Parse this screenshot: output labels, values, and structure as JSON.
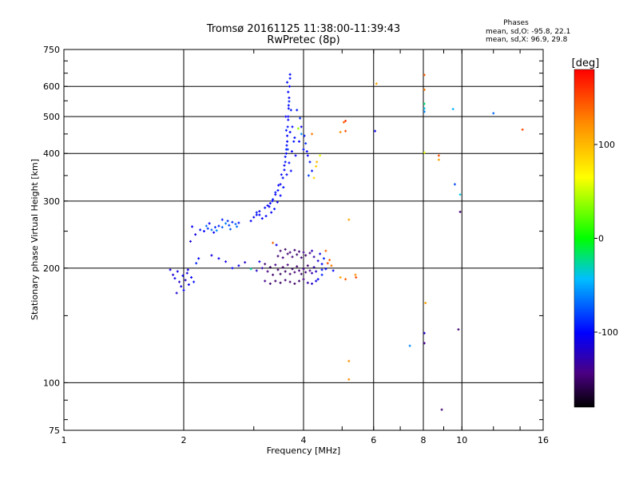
{
  "chart_data": {
    "type": "scatter",
    "title": "Tromsø 20161125 11:38:00-11:39:43",
    "subtitle": "RwPretec (8p)",
    "xlabel": "Frequency [MHz]",
    "ylabel": "Stationary phase Virtual Height [km]",
    "x_scale": "log",
    "y_scale": "log",
    "xlim": [
      1,
      16
    ],
    "ylim": [
      75,
      750
    ],
    "x_ticks": [
      1,
      2,
      4,
      6,
      8,
      10,
      16
    ],
    "x_tick_labels": [
      "1",
      "2",
      "4",
      "6",
      "8",
      "10",
      "16"
    ],
    "y_ticks": [
      75,
      100,
      200,
      300,
      400,
      500,
      600,
      750
    ],
    "y_tick_labels": [
      "75",
      "100",
      "200",
      "300",
      "400",
      "500",
      "600",
      "750"
    ],
    "grid_x": [
      2,
      4,
      6,
      8,
      10
    ],
    "grid_y": [
      100,
      200,
      300,
      400,
      500,
      600
    ],
    "grid": true,
    "legend": {
      "title": "Phases",
      "lines": [
        "mean, sd,O: -95.8, 22.1",
        "mean, sd,X: 96.9, 29.8"
      ]
    },
    "colorbar": {
      "label": "[deg]",
      "min": -180,
      "max": 180,
      "ticks": [
        100,
        0,
        -100
      ],
      "tick_labels": [
        "100",
        "0",
        "-100"
      ]
    },
    "series": [
      {
        "points": [
          [
            1.88,
            192,
            -115
          ],
          [
            1.9,
            188,
            -105
          ],
          [
            1.93,
            196,
            -110
          ],
          [
            1.95,
            184,
            -120
          ],
          [
            1.97,
            179,
            -108
          ],
          [
            1.99,
            191,
            -102
          ],
          [
            2.02,
            186,
            -118
          ],
          [
            2.04,
            194,
            -112
          ],
          [
            2.06,
            181,
            -106
          ],
          [
            2.09,
            189,
            -100
          ],
          [
            1.92,
            172,
            -115
          ],
          [
            2.0,
            175,
            -104
          ],
          [
            2.05,
            198,
            -110
          ],
          [
            2.12,
            184,
            -96
          ],
          [
            2.15,
            206,
            -90
          ],
          [
            1.85,
            198,
            -112
          ],
          [
            2.18,
            212,
            -100
          ],
          [
            2.08,
            235,
            -115
          ],
          [
            2.1,
            257,
            -104
          ],
          [
            2.14,
            245,
            -110
          ],
          [
            2.2,
            252,
            -95
          ],
          [
            2.25,
            250,
            -100
          ],
          [
            2.3,
            254,
            -85
          ],
          [
            2.35,
            252,
            -70
          ],
          [
            2.4,
            256,
            -88
          ],
          [
            2.45,
            258,
            -92
          ],
          [
            2.5,
            256,
            -75
          ],
          [
            2.55,
            262,
            -65
          ],
          [
            2.6,
            259,
            -80
          ],
          [
            2.65,
            264,
            -90
          ],
          [
            2.7,
            261,
            -70
          ],
          [
            2.75,
            263,
            -95
          ],
          [
            2.28,
            258,
            -70
          ],
          [
            2.42,
            251,
            -60
          ],
          [
            2.58,
            266,
            -86
          ],
          [
            2.72,
            257,
            -68
          ],
          [
            2.32,
            262,
            -100
          ],
          [
            2.5,
            268,
            -92
          ],
          [
            2.38,
            248,
            -105
          ],
          [
            2.62,
            253,
            -75
          ],
          [
            2.95,
            266,
            -100
          ],
          [
            3.0,
            272,
            -105
          ],
          [
            3.05,
            276,
            -98
          ],
          [
            3.1,
            282,
            -110
          ],
          [
            3.15,
            270,
            -102
          ],
          [
            3.2,
            288,
            -96
          ],
          [
            3.25,
            292,
            -108
          ],
          [
            3.3,
            296,
            -100
          ],
          [
            3.35,
            303,
            -94
          ],
          [
            3.4,
            312,
            -105
          ],
          [
            3.45,
            320,
            -98
          ],
          [
            3.5,
            332,
            -102
          ],
          [
            3.55,
            345,
            -96
          ],
          [
            3.58,
            362,
            -100
          ],
          [
            3.6,
            380,
            -94
          ],
          [
            3.62,
            400,
            -102
          ],
          [
            3.63,
            420,
            -96
          ],
          [
            3.64,
            445,
            -100
          ],
          [
            3.65,
            470,
            -94
          ],
          [
            3.66,
            500,
            -102
          ],
          [
            3.67,
            525,
            -98
          ],
          [
            3.68,
            560,
            -104
          ],
          [
            3.69,
            600,
            -100
          ],
          [
            3.7,
            630,
            -96
          ],
          [
            3.7,
            645,
            -100
          ],
          [
            3.68,
            548,
            -92
          ],
          [
            3.66,
            490,
            -98
          ],
          [
            3.64,
            430,
            -100
          ],
          [
            3.62,
            410,
            -90
          ],
          [
            3.58,
            372,
            -104
          ],
          [
            3.52,
            352,
            -96
          ],
          [
            3.46,
            330,
            -102
          ],
          [
            3.4,
            316,
            -94
          ],
          [
            3.34,
            300,
            -100
          ],
          [
            3.28,
            290,
            -104
          ],
          [
            3.1,
            276,
            -98
          ],
          [
            3.05,
            280,
            -92
          ],
          [
            3.65,
            410,
            -88
          ],
          [
            3.7,
            455,
            -100
          ],
          [
            3.6,
            392,
            -96
          ],
          [
            3.72,
            520,
            -94
          ],
          [
            3.75,
            470,
            -98
          ],
          [
            3.68,
            378,
            -100
          ],
          [
            3.63,
            352,
            -102
          ],
          [
            3.56,
            326,
            -96
          ],
          [
            3.5,
            310,
            -100
          ],
          [
            3.44,
            298,
            -104
          ],
          [
            3.38,
            286,
            -96
          ],
          [
            3.32,
            280,
            -102
          ],
          [
            3.22,
            274,
            -98
          ],
          [
            3.78,
            430,
            -94
          ],
          [
            3.82,
            395,
            -100
          ],
          [
            3.8,
            440,
            -96
          ],
          [
            3.74,
            405,
            -102
          ],
          [
            3.72,
            360,
            -98
          ],
          [
            3.62,
            460,
            -92
          ],
          [
            3.66,
            580,
            -100
          ],
          [
            3.64,
            615,
            -96
          ],
          [
            3.61,
            500,
            -104
          ],
          [
            3.67,
            535,
            -98
          ],
          [
            3.9,
            430,
            -100
          ],
          [
            3.95,
            470,
            -104
          ],
          [
            4.0,
            410,
            -96
          ],
          [
            4.05,
            425,
            -88
          ],
          [
            4.1,
            395,
            -100
          ],
          [
            4.15,
            380,
            -94
          ],
          [
            4.2,
            360,
            -96
          ],
          [
            4.08,
            405,
            -100
          ],
          [
            4.02,
            445,
            -92
          ],
          [
            4.12,
            350,
            -80
          ],
          [
            3.85,
            520,
            -95
          ],
          [
            3.92,
            495,
            -88
          ],
          [
            3.88,
            465,
            40
          ],
          [
            3.95,
            450,
            -60
          ],
          [
            4.3,
            370,
            90
          ],
          [
            4.32,
            380,
            100
          ],
          [
            4.25,
            345,
            85
          ],
          [
            4.4,
            395,
            60
          ],
          [
            4.2,
            450,
            130
          ],
          [
            3.2,
            205,
            -150
          ],
          [
            3.25,
            196,
            -145
          ],
          [
            3.3,
            201,
            -155
          ],
          [
            3.35,
            192,
            -150
          ],
          [
            3.4,
            204,
            -140
          ],
          [
            3.45,
            198,
            -150
          ],
          [
            3.5,
            193,
            -155
          ],
          [
            3.55,
            201,
            -148
          ],
          [
            3.6,
            196,
            -152
          ],
          [
            3.65,
            204,
            -145
          ],
          [
            3.7,
            193,
            -150
          ],
          [
            3.75,
            199,
            -155
          ],
          [
            3.8,
            195,
            -148
          ],
          [
            3.85,
            202,
            -150
          ],
          [
            3.9,
            197,
            -145
          ],
          [
            3.95,
            193,
            -150
          ],
          [
            4.0,
            199,
            -140
          ],
          [
            4.05,
            195,
            -145
          ],
          [
            4.1,
            203,
            -150
          ],
          [
            4.15,
            197,
            -140
          ],
          [
            4.2,
            194,
            -130
          ],
          [
            4.25,
            201,
            -130
          ],
          [
            4.3,
            196,
            -120
          ],
          [
            3.4,
            185,
            -150
          ],
          [
            3.5,
            183,
            -155
          ],
          [
            3.6,
            186,
            -148
          ],
          [
            3.7,
            184,
            -150
          ],
          [
            3.8,
            182,
            -152
          ],
          [
            3.9,
            185,
            -150
          ],
          [
            4.0,
            187,
            -145
          ],
          [
            4.1,
            183,
            -130
          ],
          [
            4.2,
            182,
            -120
          ],
          [
            4.3,
            185,
            -110
          ],
          [
            3.3,
            182,
            -150
          ],
          [
            3.2,
            185,
            -140
          ],
          [
            3.45,
            215,
            -150
          ],
          [
            3.55,
            213,
            -145
          ],
          [
            3.65,
            218,
            -150
          ],
          [
            3.75,
            214,
            -148
          ],
          [
            3.85,
            217,
            -152
          ],
          [
            3.95,
            213,
            -145
          ],
          [
            4.05,
            216,
            -150
          ],
          [
            4.15,
            219,
            -140
          ],
          [
            4.25,
            214,
            -130
          ],
          [
            3.5,
            222,
            -150
          ],
          [
            3.6,
            224,
            -152
          ],
          [
            3.7,
            220,
            -148
          ],
          [
            3.8,
            223,
            -150
          ],
          [
            3.9,
            221,
            -145
          ],
          [
            4.0,
            220,
            -140
          ],
          [
            4.2,
            222,
            -125
          ],
          [
            4.35,
            209,
            -115
          ],
          [
            4.4,
            218,
            -110
          ],
          [
            4.45,
            205,
            -100
          ],
          [
            4.5,
            212,
            -90
          ],
          [
            4.6,
            206,
            150
          ],
          [
            4.65,
            210,
            140
          ],
          [
            4.55,
            222,
            140
          ],
          [
            4.7,
            203,
            130
          ],
          [
            4.45,
            198,
            -95
          ],
          [
            3.35,
            233,
            140
          ],
          [
            3.42,
            230,
            -110
          ],
          [
            3.1,
            208,
            -110
          ],
          [
            2.85,
            207,
            -120
          ],
          [
            2.75,
            203,
            -110
          ],
          [
            2.65,
            200,
            -100
          ],
          [
            2.55,
            208,
            -110
          ],
          [
            2.45,
            212,
            -105
          ],
          [
            2.35,
            216,
            -110
          ],
          [
            2.95,
            199,
            -30
          ],
          [
            3.05,
            197,
            -120
          ],
          [
            3.15,
            200,
            -130
          ],
          [
            4.35,
            187,
            -100
          ],
          [
            4.45,
            192,
            -90
          ],
          [
            4.55,
            199,
            -100
          ],
          [
            4.75,
            197,
            -100
          ],
          [
            4.95,
            189,
            110
          ],
          [
            5.1,
            187,
            140
          ],
          [
            5.4,
            192,
            120
          ],
          [
            5.42,
            189,
            150
          ],
          [
            5.1,
            458,
            150
          ],
          [
            5.1,
            487,
            160
          ],
          [
            5.05,
            483,
            140
          ],
          [
            4.95,
            455,
            120
          ],
          [
            5.2,
            268,
            110
          ],
          [
            5.2,
            114,
            120
          ],
          [
            5.2,
            102,
            120
          ],
          [
            6.05,
            458,
            -105
          ],
          [
            6.1,
            610,
            110
          ],
          [
            7.4,
            125,
            -60
          ],
          [
            8.05,
            643,
            140
          ],
          [
            8.05,
            588,
            130
          ],
          [
            8.05,
            540,
            -20
          ],
          [
            8.05,
            525,
            -40
          ],
          [
            8.05,
            402,
            60
          ],
          [
            8.05,
            515,
            -60
          ],
          [
            8.1,
            162,
            110
          ],
          [
            8.05,
            135,
            -120
          ],
          [
            8.05,
            127,
            -140
          ],
          [
            8.75,
            395,
            150
          ],
          [
            8.75,
            385,
            110
          ],
          [
            8.9,
            85,
            -150
          ],
          [
            9.5,
            523,
            -50
          ],
          [
            9.6,
            332,
            -80
          ],
          [
            9.9,
            312,
            -40
          ],
          [
            9.9,
            281,
            -150
          ],
          [
            9.8,
            138,
            -150
          ],
          [
            12.0,
            510,
            -70
          ],
          [
            14.2,
            462,
            150
          ]
        ]
      }
    ]
  }
}
